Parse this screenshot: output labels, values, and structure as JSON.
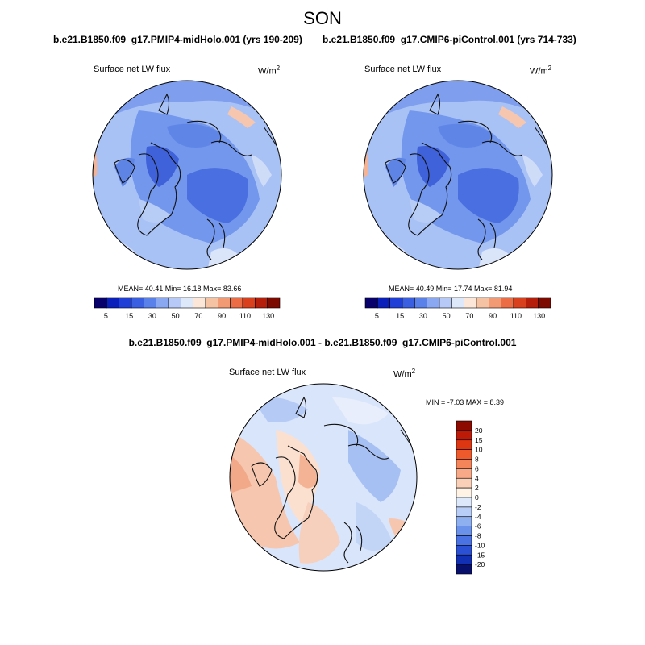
{
  "season": "SON",
  "panels": [
    {
      "case_title": "b.e21.B1850.f09_g17.PMIP4-midHolo.001 (yrs 190-209)",
      "variable": "Surface net LW flux",
      "units": "W/m",
      "units_sup": "2",
      "stats": "MEAN=  40.41  Min=  16.18  Max=  83.66"
    },
    {
      "case_title": "b.e21.B1850.f09_g17.CMIP6-piControl.001 (yrs 714-733)",
      "variable": "Surface net LW flux",
      "units": "W/m",
      "units_sup": "2",
      "stats": "MEAN=  40.49  Min=  17.74  Max=  81.94"
    }
  ],
  "colorbar": {
    "labels": [
      "5",
      "15",
      "30",
      "50",
      "70",
      "90",
      "110",
      "130"
    ],
    "colors": [
      "#08006b",
      "#0b1fbb",
      "#1f3fd6",
      "#3a5fe0",
      "#5a80ea",
      "#8aa8f2",
      "#b6c9f7",
      "#dde8fb",
      "#fbe6d8",
      "#f6c2a4",
      "#f29a74",
      "#ec6d45",
      "#d9401e",
      "#b41e0a",
      "#7d0a00"
    ]
  },
  "diff": {
    "title": "b.e21.B1850.f09_g17.PMIP4-midHolo.001 - b.e21.B1850.f09_g17.CMIP6-piControl.001",
    "variable": "Surface net LW flux",
    "units": "W/m",
    "units_sup": "2",
    "stats": "MIN =  -7.03 MAX =   8.39",
    "colorbar_labels": [
      "20",
      "15",
      "10",
      "8",
      "6",
      "4",
      "2",
      "0",
      "-2",
      "-4",
      "-6",
      "-8",
      "-10",
      "-15",
      "-20"
    ],
    "colorbar_colors": [
      "#8c0a00",
      "#bd1b08",
      "#dc3612",
      "#ef5a2c",
      "#f4845a",
      "#f7a988",
      "#fbd0b8",
      "#fff3e6",
      "#dde9fb",
      "#b8cef6",
      "#8fb0f0",
      "#6a92ea",
      "#4a72e2",
      "#2c50d4",
      "#1230b4",
      "#08106e"
    ]
  },
  "map_colors": {
    "land_blue": "#4a6fe0",
    "mid_blue": "#7297ec",
    "light_blue": "#a9c2f5",
    "ocean_pale": "#cfdcf8",
    "warm": "#f3b394",
    "coast": "#111111",
    "diff_pale_blue": "#d9e5fa",
    "diff_blue": "#a7c0f3",
    "diff_pale_red": "#fbe0d0",
    "diff_red": "#f4b29a"
  }
}
